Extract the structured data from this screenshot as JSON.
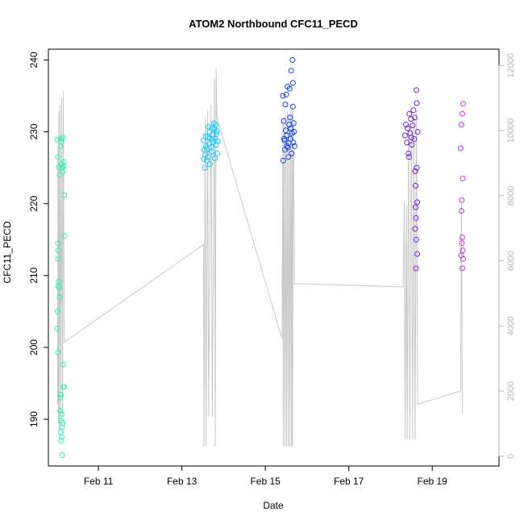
{
  "chart_data": {
    "type": "scatter",
    "title": "ATOM2 Northbound CFC11_PECD",
    "xlabel": "Date",
    "ylabel": "CFC11_PECD",
    "x_unit": "day of February",
    "xlim": [
      9.8,
      20.6
    ],
    "ylim": [
      183.5,
      241.5
    ],
    "x_ticks": [
      {
        "value": 11,
        "label": "Feb 11"
      },
      {
        "value": 13,
        "label": "Feb 13"
      },
      {
        "value": 15,
        "label": "Feb 15"
      },
      {
        "value": 17,
        "label": "Feb 17"
      },
      {
        "value": 19,
        "label": "Feb 19"
      }
    ],
    "y_ticks": [
      190,
      200,
      210,
      220,
      230,
      240
    ],
    "y2_ticks": [
      0,
      2000,
      4000,
      6000,
      8000,
      10000,
      12000
    ],
    "y2lim": [
      -300,
      12500
    ],
    "grid": false,
    "legend": "none",
    "colors": {
      "axis": "#000000",
      "secondary_axis": "#b3b3b3",
      "altitude_line": "#c8c8c8"
    },
    "series": [
      {
        "color": "#2ef0b4",
        "points": [
          [
            10.01,
            228.9
          ],
          [
            10.03,
            226.5
          ],
          [
            10.05,
            225.1
          ],
          [
            10.07,
            224.0
          ],
          [
            10.09,
            228.0
          ],
          [
            10.1,
            229.0
          ],
          [
            10.11,
            228.6
          ],
          [
            10.12,
            225.5
          ],
          [
            10.13,
            225.0
          ],
          [
            10.14,
            224.4
          ],
          [
            10.15,
            229.2
          ],
          [
            10.16,
            225.2
          ],
          [
            10.17,
            225.8
          ],
          [
            10.18,
            221.2
          ],
          [
            10.19,
            215.5
          ],
          [
            10.03,
            214.5
          ],
          [
            10.04,
            213.5
          ],
          [
            10.03,
            212.3
          ],
          [
            10.05,
            209.2
          ],
          [
            10.04,
            208.5
          ],
          [
            10.06,
            208.3
          ],
          [
            10.07,
            207.0
          ],
          [
            10.02,
            205.0
          ],
          [
            10.01,
            202.6
          ],
          [
            10.03,
            199.3
          ],
          [
            10.15,
            197.6
          ],
          [
            10.16,
            194.5
          ],
          [
            10.17,
            194.5
          ],
          [
            10.1,
            193.4
          ],
          [
            10.09,
            193.0
          ],
          [
            10.08,
            191.2
          ],
          [
            10.12,
            190.7
          ],
          [
            10.11,
            189.8
          ],
          [
            10.14,
            189.5
          ],
          [
            10.13,
            188.9
          ],
          [
            10.1,
            188.2
          ],
          [
            10.12,
            187.5
          ],
          [
            10.11,
            187.0
          ],
          [
            10.13,
            185.0
          ]
        ]
      },
      {
        "color": "#14c8ff",
        "points": [
          [
            13.52,
            228.8
          ],
          [
            13.54,
            227.5
          ],
          [
            13.56,
            226.8
          ],
          [
            13.58,
            228.0
          ],
          [
            13.6,
            227.6
          ],
          [
            13.62,
            229.2
          ],
          [
            13.63,
            226.5
          ],
          [
            13.65,
            228.3
          ],
          [
            13.66,
            230.0
          ],
          [
            13.68,
            229.1
          ],
          [
            13.7,
            227.9
          ],
          [
            13.72,
            230.5
          ],
          [
            13.74,
            229.6
          ],
          [
            13.75,
            228.6
          ],
          [
            13.77,
            231.2
          ],
          [
            13.78,
            230.4
          ],
          [
            13.8,
            229.0
          ],
          [
            13.82,
            228.2
          ],
          [
            13.84,
            230.1
          ],
          [
            13.85,
            227.0
          ],
          [
            13.55,
            225.0
          ],
          [
            13.6,
            226.0
          ],
          [
            13.67,
            225.5
          ],
          [
            13.71,
            227.2
          ],
          [
            13.79,
            226.3
          ],
          [
            13.83,
            229.7
          ],
          [
            13.57,
            229.4
          ],
          [
            13.64,
            230.7
          ],
          [
            13.73,
            228.9
          ],
          [
            13.81,
            231.0
          ],
          [
            13.86,
            228.7
          ],
          [
            13.53,
            226.2
          ]
        ]
      },
      {
        "color": "#1440ff",
        "points": [
          [
            15.42,
            235.0
          ],
          [
            15.44,
            231.5
          ],
          [
            15.45,
            229.0
          ],
          [
            15.47,
            227.5
          ],
          [
            15.48,
            233.8
          ],
          [
            15.5,
            235.2
          ],
          [
            15.51,
            229.5
          ],
          [
            15.52,
            228.0
          ],
          [
            15.53,
            236.3
          ],
          [
            15.55,
            226.5
          ],
          [
            15.56,
            228.4
          ],
          [
            15.57,
            231.0
          ],
          [
            15.58,
            236.0
          ],
          [
            15.6,
            229.0
          ],
          [
            15.61,
            230.5
          ],
          [
            15.62,
            238.5
          ],
          [
            15.63,
            227.0
          ],
          [
            15.64,
            229.8
          ],
          [
            15.65,
            240.0
          ],
          [
            15.66,
            233.5
          ],
          [
            15.67,
            228.5
          ],
          [
            15.68,
            231.2
          ],
          [
            15.69,
            230.0
          ],
          [
            15.7,
            228.0
          ],
          [
            15.43,
            226.0
          ],
          [
            15.46,
            228.8
          ],
          [
            15.49,
            230.2
          ],
          [
            15.54,
            227.8
          ],
          [
            15.59,
            232.0
          ],
          [
            15.66,
            236.8
          ]
        ]
      },
      {
        "color": "#7020f0",
        "points": [
          [
            18.35,
            229.5
          ],
          [
            18.37,
            231.0
          ],
          [
            18.39,
            228.5
          ],
          [
            18.41,
            230.5
          ],
          [
            18.43,
            227.0
          ],
          [
            18.45,
            232.5
          ],
          [
            18.47,
            229.8
          ],
          [
            18.49,
            231.8
          ],
          [
            18.51,
            228.2
          ],
          [
            18.53,
            230.9
          ],
          [
            18.55,
            233.0
          ],
          [
            18.57,
            229.0
          ],
          [
            18.59,
            224.5
          ],
          [
            18.6,
            222.5
          ],
          [
            18.62,
            235.8
          ],
          [
            18.63,
            234.0
          ],
          [
            18.64,
            220.2
          ],
          [
            18.6,
            219.5
          ],
          [
            18.61,
            218.0
          ],
          [
            18.59,
            216.5
          ],
          [
            18.62,
            215.0
          ],
          [
            18.64,
            213.0
          ],
          [
            18.61,
            211.0
          ],
          [
            18.63,
            225.0
          ],
          [
            18.65,
            230.0
          ],
          [
            18.44,
            226.5
          ],
          [
            18.5,
            229.2
          ],
          [
            18.58,
            232.0
          ]
        ]
      },
      {
        "color": "#d030f0",
        "points": [
          [
            19.7,
            231.0
          ],
          [
            19.72,
            232.5
          ],
          [
            19.74,
            233.9
          ],
          [
            19.68,
            227.7
          ],
          [
            19.73,
            223.5
          ],
          [
            19.71,
            220.5
          ],
          [
            19.7,
            219.0
          ],
          [
            19.72,
            215.3
          ],
          [
            19.71,
            214.5
          ],
          [
            19.73,
            213.5
          ],
          [
            19.69,
            212.8
          ],
          [
            19.74,
            212.3
          ],
          [
            19.72,
            211.0
          ]
        ]
      }
    ],
    "altitude_trace": [
      [
        10.02,
        1600
      ],
      [
        10.03,
        9500
      ],
      [
        10.04,
        1000
      ],
      [
        10.05,
        10600
      ],
      [
        10.06,
        800
      ],
      [
        10.08,
        10800
      ],
      [
        10.1,
        1000
      ],
      [
        10.12,
        11000
      ],
      [
        10.14,
        1200
      ],
      [
        10.16,
        11200
      ],
      [
        10.18,
        3500
      ],
      [
        13.52,
        6500
      ],
      [
        13.53,
        300
      ],
      [
        13.56,
        10400
      ],
      [
        13.58,
        300
      ],
      [
        13.62,
        10600
      ],
      [
        13.64,
        1200
      ],
      [
        13.7,
        10800
      ],
      [
        13.73,
        1200
      ],
      [
        13.78,
        11600
      ],
      [
        13.8,
        300
      ],
      [
        13.82,
        11900
      ],
      [
        13.84,
        10400
      ],
      [
        15.4,
        3600
      ],
      [
        15.42,
        10200
      ],
      [
        15.43,
        300
      ],
      [
        15.45,
        10400
      ],
      [
        15.47,
        300
      ],
      [
        15.49,
        10500
      ],
      [
        15.51,
        300
      ],
      [
        15.53,
        10600
      ],
      [
        15.55,
        300
      ],
      [
        15.57,
        10500
      ],
      [
        15.59,
        300
      ],
      [
        15.61,
        10600
      ],
      [
        15.63,
        300
      ],
      [
        15.64,
        10800
      ],
      [
        15.65,
        300
      ],
      [
        15.67,
        10600
      ],
      [
        15.7,
        5300
      ],
      [
        18.3,
        5200
      ],
      [
        18.33,
        7800
      ],
      [
        18.35,
        500
      ],
      [
        18.38,
        7700
      ],
      [
        18.4,
        500
      ],
      [
        18.43,
        10000
      ],
      [
        18.46,
        500
      ],
      [
        18.5,
        10200
      ],
      [
        18.53,
        500
      ],
      [
        18.56,
        10400
      ],
      [
        18.59,
        500
      ],
      [
        18.62,
        10600
      ],
      [
        18.65,
        1600
      ],
      [
        19.68,
        2000
      ],
      [
        19.7,
        7800
      ],
      [
        19.72,
        1300
      ]
    ]
  }
}
